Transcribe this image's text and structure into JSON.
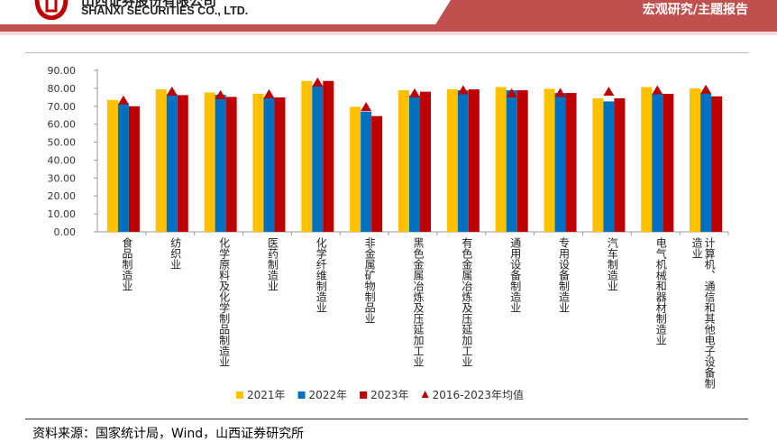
{
  "header": {
    "company_cn": "山西证券股份有限公司",
    "company_en": "SHANXI SECURITIES CO., LTD.",
    "report_type": "宏观研究/主题报告"
  },
  "colors": {
    "y2021": "#ffc000",
    "y2022": "#0070c0",
    "y2023": "#c00000",
    "avg": "#c00000",
    "brand": "#c0504d"
  },
  "chart_data": {
    "type": "bar",
    "title": "",
    "ylim": [
      0,
      90
    ],
    "yticks": [
      "0.00",
      "10.00",
      "20.00",
      "30.00",
      "40.00",
      "50.00",
      "60.00",
      "70.00",
      "80.00",
      "90.00"
    ],
    "categories": [
      "食品制造业",
      "纺织业",
      "化学原料及化学制品制造业",
      "医药制造业",
      "化学纤维制造业",
      "非金属矿物制品业",
      "黑色金属冶炼及压延加工业",
      "有色金属冶炼及压延加工业",
      "通用设备制造业",
      "专用设备制造业",
      "汽车制造业",
      "电气机械和器材制造业",
      "计算机、通信和其他电子设备制造业"
    ],
    "series": [
      {
        "name": "2021年",
        "type": "bar",
        "values": [
          73.5,
          79.4,
          77.7,
          77.0,
          84.1,
          69.7,
          78.9,
          79.4,
          80.7,
          79.7,
          74.4,
          80.7,
          80.0
        ]
      },
      {
        "name": "2022年",
        "type": "bar",
        "values": [
          71.5,
          76.7,
          76.4,
          74.9,
          81.6,
          67.0,
          75.9,
          78.9,
          78.9,
          77.4,
          72.7,
          76.9,
          77.5
        ]
      },
      {
        "name": "2023年",
        "type": "bar",
        "values": [
          70.0,
          76.2,
          75.2,
          74.9,
          84.1,
          64.5,
          78.1,
          79.4,
          78.9,
          77.4,
          74.4,
          76.9,
          75.5
        ]
      },
      {
        "name": "2016-2023年均值",
        "type": "marker",
        "values": [
          73.0,
          78.0,
          76.0,
          76.5,
          83.0,
          69.3,
          77.0,
          78.7,
          77.0,
          77.2,
          77.9,
          78.6,
          79.0
        ]
      }
    ],
    "legend": "bottom"
  },
  "source": "资料来源：国家统计局，Wind，山西证券研究所"
}
